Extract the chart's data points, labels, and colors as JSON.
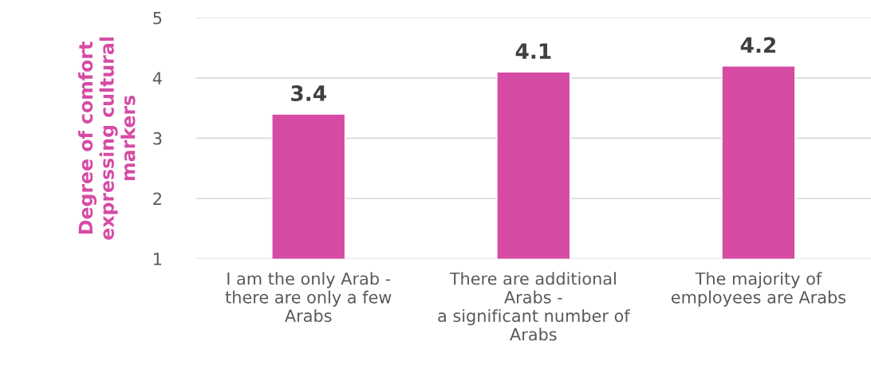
{
  "chart_data": {
    "type": "bar",
    "ylabel": "Degree of comfort\nexpressing cultural\nmarkers",
    "categories": [
      "I am the only Arab -\nthere are only a few\nArabs",
      "There are additional\nArabs -\na significant number of\nArabs",
      "The majority of\nemployees are Arabs"
    ],
    "values": [
      3.4,
      4.1,
      4.2
    ],
    "color": "#d64ba4",
    "ylim": [
      1,
      5
    ],
    "yticks": [
      1,
      2,
      3,
      4,
      5
    ],
    "grid": "y",
    "data_labels": true,
    "legend": false
  }
}
